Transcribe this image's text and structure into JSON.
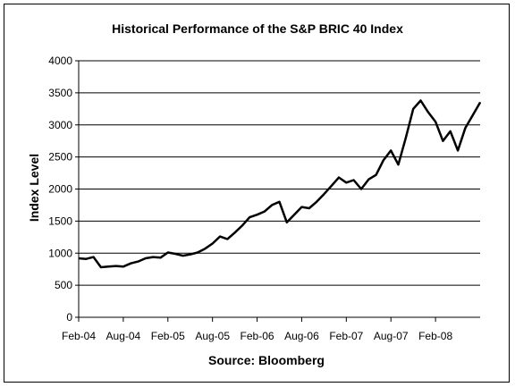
{
  "chart_data": {
    "type": "line",
    "title": "Historical Performance of the S&P BRIC 40 Index",
    "xlabel": "Source: Bloomberg",
    "ylabel": "Index Level",
    "ylim": [
      0,
      4000
    ],
    "y_ticks": [
      "0",
      "500",
      "1000",
      "1500",
      "2000",
      "2500",
      "3000",
      "3500",
      "4000"
    ],
    "x_ticks": [
      "Feb-04",
      "Aug-04",
      "Feb-05",
      "Aug-05",
      "Feb-06",
      "Aug-06",
      "Feb-07",
      "Aug-07",
      "Feb-08"
    ],
    "grid": "horizontal",
    "legend": "none",
    "line_color": "#000000",
    "series": [
      {
        "points": [
          [
            "2004-02",
            920
          ],
          [
            "2004-03",
            910
          ],
          [
            "2004-04",
            940
          ],
          [
            "2004-05",
            780
          ],
          [
            "2004-06",
            790
          ],
          [
            "2004-07",
            800
          ],
          [
            "2004-08",
            790
          ],
          [
            "2004-09",
            840
          ],
          [
            "2004-10",
            870
          ],
          [
            "2004-11",
            920
          ],
          [
            "2004-12",
            940
          ],
          [
            "2005-01",
            930
          ],
          [
            "2005-02",
            1010
          ],
          [
            "2005-03",
            990
          ],
          [
            "2005-04",
            960
          ],
          [
            "2005-05",
            980
          ],
          [
            "2005-06",
            1010
          ],
          [
            "2005-07",
            1070
          ],
          [
            "2005-08",
            1150
          ],
          [
            "2005-09",
            1260
          ],
          [
            "2005-10",
            1220
          ],
          [
            "2005-11",
            1320
          ],
          [
            "2005-12",
            1430
          ],
          [
            "2006-01",
            1560
          ],
          [
            "2006-02",
            1600
          ],
          [
            "2006-03",
            1650
          ],
          [
            "2006-04",
            1750
          ],
          [
            "2006-05",
            1800
          ],
          [
            "2006-06",
            1480
          ],
          [
            "2006-07",
            1600
          ],
          [
            "2006-08",
            1720
          ],
          [
            "2006-09",
            1700
          ],
          [
            "2006-10",
            1800
          ],
          [
            "2006-11",
            1920
          ],
          [
            "2006-12",
            2050
          ],
          [
            "2007-01",
            2180
          ],
          [
            "2007-02",
            2100
          ],
          [
            "2007-03",
            2140
          ],
          [
            "2007-04",
            2000
          ],
          [
            "2007-05",
            2150
          ],
          [
            "2007-06",
            2220
          ],
          [
            "2007-07",
            2450
          ],
          [
            "2007-08",
            2600
          ],
          [
            "2007-09",
            2380
          ],
          [
            "2007-10",
            2800
          ],
          [
            "2007-11",
            3250
          ],
          [
            "2007-12",
            3380
          ],
          [
            "2008-01",
            3200
          ],
          [
            "2008-02",
            3050
          ],
          [
            "2008-03",
            2750
          ],
          [
            "2008-04",
            2900
          ],
          [
            "2008-05",
            2600
          ],
          [
            "2008-06",
            2950
          ],
          [
            "2008-07",
            3150
          ],
          [
            "2008-08",
            3350
          ]
        ]
      }
    ]
  }
}
